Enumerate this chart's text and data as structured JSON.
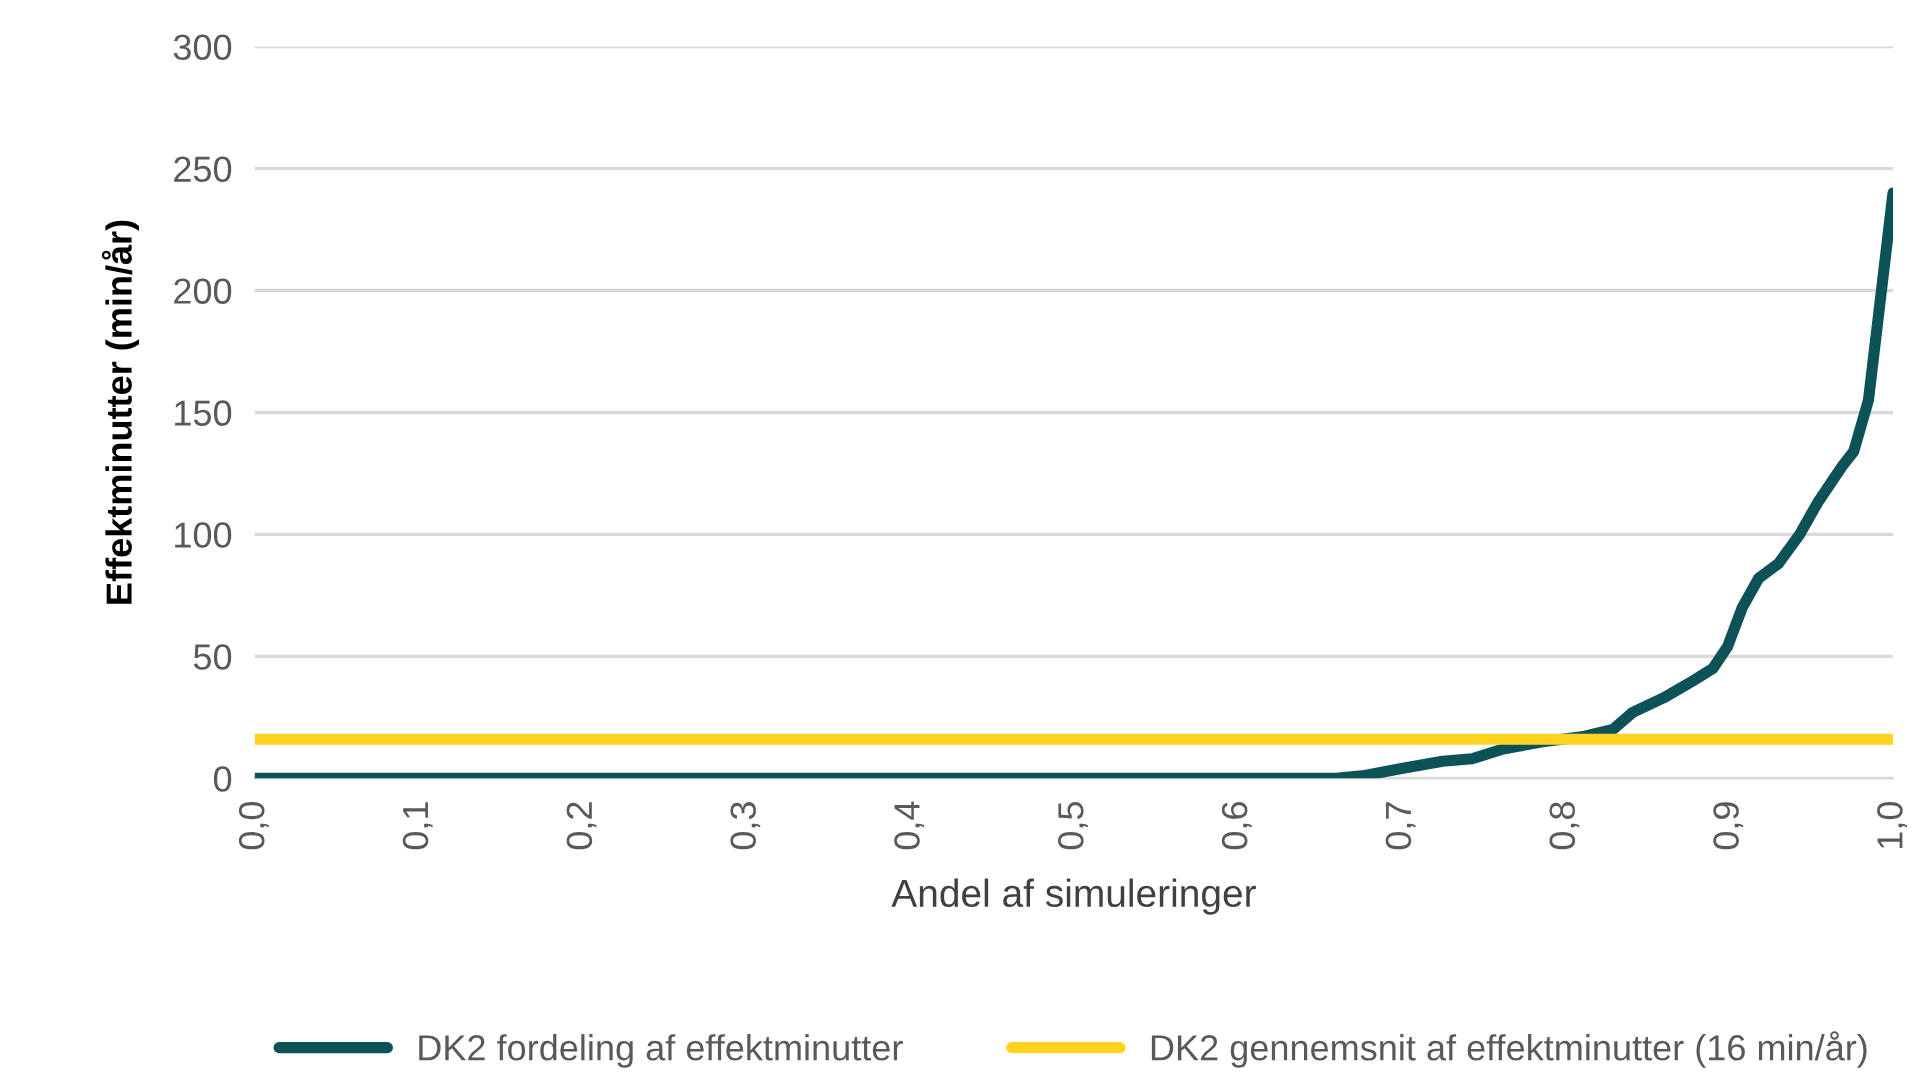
{
  "chart_data": {
    "type": "line",
    "xlabel": "Andel af simuleringer",
    "ylabel": "Effektminutter (min/år)",
    "xlim": [
      0,
      1
    ],
    "xticks": [
      {
        "value": 0,
        "label": "0,0"
      },
      {
        "value": 0.1,
        "label": "0,1"
      },
      {
        "value": 0.2,
        "label": "0,2"
      },
      {
        "value": 0.3,
        "label": "0,3"
      },
      {
        "value": 0.4,
        "label": "0,4"
      },
      {
        "value": 0.5,
        "label": "0,5"
      },
      {
        "value": 0.6,
        "label": "0,6"
      },
      {
        "value": 0.7,
        "label": "0,7"
      },
      {
        "value": 0.8,
        "label": "0,8"
      },
      {
        "value": 0.9,
        "label": "0,9"
      },
      {
        "value": 1.0,
        "label": "1,0"
      }
    ],
    "ylim": [
      0,
      300
    ],
    "yticks": [
      0,
      50,
      100,
      150,
      200,
      250,
      300
    ],
    "grid": "y",
    "legend": "bottom",
    "marker": "none",
    "line_style": "solid",
    "series": [
      {
        "name": "DK2 fordeling af effektminutter",
        "color": "#0d5257",
        "x": [
          0,
          0.1,
          0.2,
          0.3,
          0.4,
          0.5,
          0.6,
          0.66,
          0.676,
          0.7,
          0.725,
          0.743,
          0.762,
          0.786,
          0.81,
          0.829,
          0.841,
          0.86,
          0.878,
          0.89,
          0.899,
          0.908,
          0.918,
          0.93,
          0.943,
          0.954,
          0.969,
          0.976,
          0.985,
          1.0
        ],
        "values": [
          0,
          0,
          0,
          0,
          0,
          0,
          0,
          0,
          1,
          4,
          7,
          8,
          12,
          15,
          17,
          20,
          27,
          33,
          40,
          45,
          54,
          70,
          82,
          88,
          100,
          113,
          128,
          134,
          155,
          240
        ]
      },
      {
        "name": "DK2 gennemsnit af effektminutter (16 min/år)",
        "color": "#ffd320",
        "x": [
          0,
          1.0
        ],
        "values": [
          16,
          16
        ]
      }
    ]
  }
}
